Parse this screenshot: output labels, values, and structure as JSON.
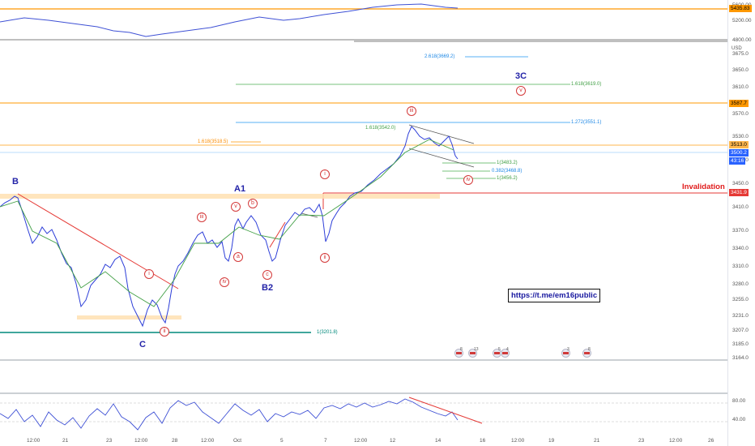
{
  "price_scale": {
    "currency": "USD",
    "top_pane_ticks": [
      "5600.00",
      "5200.00",
      "4800.00"
    ],
    "main_ticks": [
      "3675.0",
      "3650.0",
      "3610.0",
      "3570.0",
      "3530.0",
      "3490.0",
      "3450.0",
      "3410.0",
      "3370.0",
      "3340.0",
      "3310.0",
      "3280.0",
      "3255.0",
      "3231.0",
      "3207.0",
      "3185.0",
      "3164.0"
    ],
    "rsi_ticks": [
      "80.00",
      "40.00"
    ],
    "labels": {
      "top_level": "5435.83",
      "level_3587": "3587.7",
      "level_3513": "3513.0",
      "last_price": "3500.2",
      "countdown": "43:16",
      "invalidation_level": "3431.9"
    },
    "colors": {
      "orange": "#ff9800",
      "blue": "#2962ff",
      "red": "#e53935",
      "dark_blue": "#1e3a8a"
    }
  },
  "x_axis": [
    "12:00",
    "21",
    "23",
    "12:00",
    "28",
    "12:00",
    "Oct",
    "5",
    "7",
    "12:00",
    "12",
    "14",
    "16",
    "12:00",
    "19",
    "21",
    "23",
    "12:00",
    "26"
  ],
  "waves": {
    "B": "B",
    "C": "C",
    "A1": "A1",
    "B2": "B2",
    "3C": "3C"
  },
  "circled": {
    "i_left": "i",
    "ii_left": "ii",
    "iii_left": "iii",
    "iv_left": "iv",
    "v_left": "v",
    "a": "a",
    "b": "b",
    "c": "c",
    "i_mid": "i",
    "ii_mid": "ii",
    "iii_top": "iii",
    "iv_right": "iv",
    "v_right": "v"
  },
  "fib_labels": {
    "f_2618": "2.618(3669.2)",
    "f_1618_top": "1.618(3619.0)",
    "f_1272": "1.272(3551.1)",
    "f_1618_mid": "1.618(3542.0)",
    "f_1618_orange": "1.618(3518.5)",
    "f_1_3483": "1(3483.2)",
    "f_0382": "0.382(3468.8)",
    "f_1_3456": "1(3456.2)",
    "f_1_3201": "1(3201.8)"
  },
  "annotations": {
    "link": "https://t.me/em16public",
    "invalidation": "Invalidation"
  },
  "events": {
    "e1": "8",
    "e2": "13",
    "e3": "5",
    "e4": "4",
    "e5": "3",
    "e6": "8"
  }
}
